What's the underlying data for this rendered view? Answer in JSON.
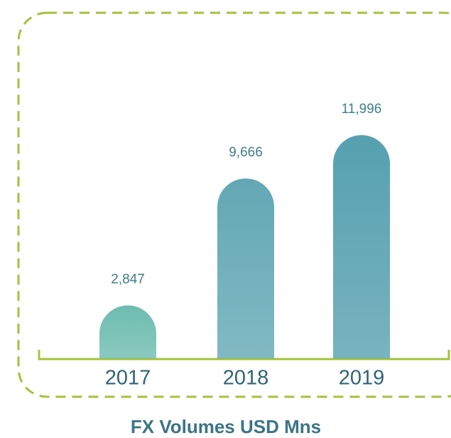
{
  "chart_data": {
    "type": "bar",
    "title": "FX Volumes USD Mns",
    "categories": [
      "2017",
      "2018",
      "2019"
    ],
    "values": [
      2847,
      9666,
      11996
    ],
    "value_labels": [
      "2,847",
      "9,666",
      "11,996"
    ],
    "colors": [
      "#6dbcaf",
      "#62a8b4",
      "#56a0b0"
    ]
  }
}
